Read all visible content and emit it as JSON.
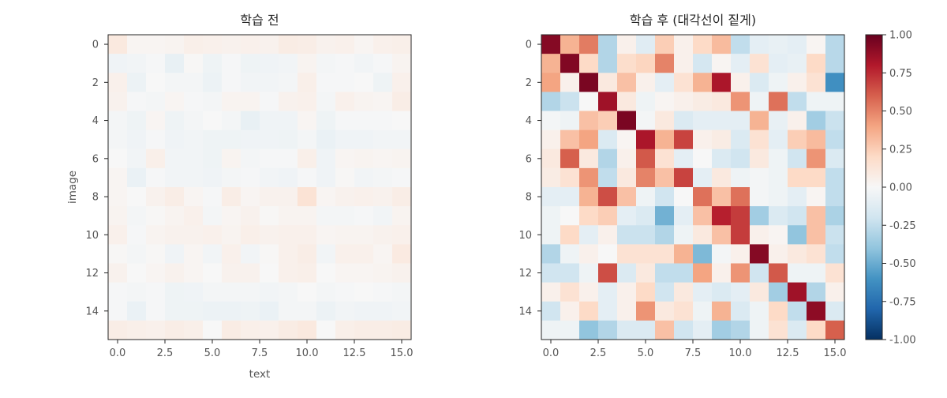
{
  "chart_data": [
    {
      "type": "heatmap",
      "title": "학습 전",
      "xlabel": "text",
      "ylabel": "image",
      "xlim": [
        -0.5,
        15.5
      ],
      "ylim": [
        15.5,
        -0.5
      ],
      "x_ticks": [
        "0.0",
        "2.5",
        "5.0",
        "7.5",
        "10.0",
        "12.5",
        "15.0"
      ],
      "y_ticks": [
        "0",
        "2",
        "4",
        "6",
        "8",
        "10",
        "12",
        "14"
      ],
      "values": [
        [
          0.1,
          0.02,
          0.02,
          0.03,
          0.06,
          0.05,
          0.04,
          0.05,
          0.04,
          0.08,
          0.07,
          0.04,
          0.05,
          0.02,
          0.05,
          0.06
        ],
        [
          -0.04,
          -0.03,
          -0.01,
          -0.08,
          0.01,
          -0.05,
          -0.01,
          -0.05,
          -0.04,
          -0.03,
          0.03,
          -0.02,
          -0.01,
          -0.03,
          -0.01,
          0.03
        ],
        [
          0.05,
          -0.06,
          0.0,
          -0.02,
          -0.02,
          -0.06,
          -0.01,
          -0.03,
          -0.03,
          -0.02,
          0.06,
          -0.01,
          -0.01,
          0.0,
          -0.05,
          0.05
        ],
        [
          0.04,
          -0.01,
          -0.02,
          0.02,
          -0.01,
          -0.02,
          0.03,
          0.03,
          -0.01,
          0.04,
          0.05,
          -0.02,
          0.05,
          0.03,
          0.02,
          0.07
        ],
        [
          -0.02,
          -0.05,
          0.02,
          -0.05,
          -0.02,
          0.0,
          -0.02,
          -0.08,
          -0.04,
          -0.04,
          0.02,
          -0.05,
          -0.01,
          -0.01,
          -0.01,
          0.0
        ],
        [
          -0.02,
          -0.04,
          -0.01,
          -0.04,
          -0.03,
          -0.05,
          -0.05,
          -0.04,
          -0.04,
          -0.05,
          -0.02,
          -0.07,
          -0.04,
          -0.04,
          -0.03,
          -0.03
        ],
        [
          0.0,
          -0.03,
          0.06,
          -0.03,
          -0.03,
          -0.05,
          0.03,
          -0.02,
          -0.01,
          -0.01,
          0.06,
          -0.04,
          0.02,
          0.03,
          0.02,
          0.03
        ],
        [
          0.02,
          -0.07,
          -0.01,
          -0.03,
          -0.03,
          -0.04,
          -0.02,
          -0.01,
          -0.03,
          -0.04,
          -0.01,
          -0.04,
          0.01,
          -0.03,
          -0.02,
          -0.01
        ],
        [
          0.02,
          0.0,
          0.04,
          0.07,
          0.02,
          -0.01,
          0.07,
          0.02,
          0.04,
          0.04,
          0.14,
          0.02,
          0.04,
          0.05,
          0.04,
          0.07
        ],
        [
          0.03,
          -0.02,
          0.01,
          0.03,
          0.05,
          -0.02,
          0.02,
          0.04,
          0.01,
          0.03,
          0.03,
          -0.02,
          -0.02,
          -0.01,
          -0.03,
          0.03
        ],
        [
          0.05,
          -0.01,
          0.03,
          0.04,
          0.04,
          0.05,
          0.03,
          0.06,
          0.04,
          0.05,
          0.05,
          0.02,
          0.03,
          0.03,
          0.04,
          0.05
        ],
        [
          0.01,
          -0.02,
          0.01,
          -0.04,
          0.02,
          -0.03,
          0.05,
          -0.03,
          0.01,
          0.05,
          0.07,
          -0.03,
          0.05,
          0.05,
          0.02,
          0.09
        ],
        [
          0.04,
          0.0,
          0.02,
          0.04,
          0.02,
          0.0,
          0.04,
          0.04,
          0.0,
          0.05,
          0.06,
          0.0,
          0.02,
          0.02,
          0.03,
          0.04
        ],
        [
          -0.01,
          -0.02,
          -0.01,
          -0.05,
          -0.04,
          -0.02,
          -0.02,
          -0.02,
          -0.03,
          -0.02,
          0.0,
          -0.02,
          -0.01,
          0.0,
          -0.01,
          -0.02
        ],
        [
          -0.01,
          -0.07,
          -0.01,
          -0.05,
          -0.05,
          -0.06,
          -0.06,
          -0.05,
          -0.07,
          -0.02,
          -0.02,
          -0.06,
          -0.03,
          -0.04,
          -0.04,
          -0.03
        ],
        [
          0.07,
          0.06,
          0.05,
          0.07,
          0.06,
          0.0,
          0.08,
          0.06,
          0.05,
          0.08,
          0.1,
          0.0,
          0.06,
          0.07,
          0.07,
          0.08
        ]
      ]
    },
    {
      "type": "heatmap",
      "title": "학습 후 (대각선이 짙게)",
      "xlim": [
        -0.5,
        15.5
      ],
      "ylim": [
        15.5,
        -0.5
      ],
      "x_ticks": [
        "0.0",
        "2.5",
        "5.0",
        "7.5",
        "10.0",
        "12.5",
        "15.0"
      ],
      "y_ticks": [
        "0",
        "2",
        "4",
        "6",
        "8",
        "10",
        "12",
        "14"
      ],
      "values": [
        [
          0.92,
          0.35,
          0.52,
          -0.3,
          0.05,
          -0.12,
          0.25,
          0.05,
          0.2,
          0.32,
          -0.25,
          -0.1,
          -0.08,
          -0.1,
          0.02,
          -0.28
        ],
        [
          0.35,
          0.93,
          0.2,
          -0.3,
          0.18,
          0.22,
          0.5,
          0.05,
          -0.18,
          0.02,
          -0.1,
          0.15,
          -0.1,
          -0.08,
          0.2,
          -0.28
        ],
        [
          0.4,
          0.05,
          0.95,
          0.1,
          0.3,
          0.05,
          -0.1,
          0.15,
          0.35,
          0.82,
          0.05,
          -0.15,
          -0.05,
          0.05,
          0.15,
          -0.62
        ],
        [
          -0.3,
          -0.22,
          0.0,
          0.85,
          0.1,
          -0.05,
          0.02,
          0.05,
          0.08,
          0.1,
          0.45,
          -0.05,
          0.55,
          -0.25,
          -0.05,
          -0.05
        ],
        [
          -0.02,
          -0.05,
          0.3,
          0.25,
          0.95,
          -0.02,
          0.1,
          -0.15,
          -0.1,
          -0.1,
          -0.1,
          0.35,
          -0.08,
          0.05,
          -0.35,
          -0.22
        ],
        [
          0.05,
          0.3,
          0.4,
          -0.15,
          0.02,
          0.82,
          0.35,
          0.68,
          0.05,
          0.08,
          -0.15,
          0.15,
          -0.1,
          0.25,
          0.32,
          -0.25
        ],
        [
          0.1,
          0.6,
          0.1,
          -0.3,
          0.05,
          0.62,
          0.15,
          -0.1,
          0.0,
          -0.15,
          -0.2,
          0.1,
          -0.05,
          -0.2,
          0.45,
          -0.15
        ],
        [
          0.08,
          0.15,
          0.45,
          -0.25,
          0.1,
          0.5,
          0.3,
          0.68,
          -0.1,
          0.1,
          -0.05,
          -0.02,
          -0.05,
          0.2,
          0.2,
          -0.25
        ],
        [
          -0.1,
          -0.1,
          0.35,
          0.65,
          0.3,
          -0.05,
          -0.2,
          0.0,
          0.55,
          0.3,
          0.55,
          -0.02,
          -0.05,
          -0.1,
          0.02,
          -0.25
        ],
        [
          -0.05,
          0.0,
          0.2,
          0.25,
          -0.1,
          -0.15,
          -0.48,
          -0.1,
          0.3,
          0.78,
          0.7,
          -0.35,
          -0.15,
          -0.2,
          0.3,
          -0.32
        ],
        [
          -0.05,
          0.2,
          -0.1,
          0.05,
          -0.22,
          -0.22,
          -0.3,
          -0.05,
          0.1,
          0.3,
          0.7,
          0.05,
          0.02,
          -0.4,
          0.3,
          -0.22
        ],
        [
          -0.3,
          -0.05,
          0.05,
          0.0,
          0.15,
          0.15,
          0.15,
          0.35,
          -0.45,
          -0.02,
          0.05,
          0.92,
          0.05,
          0.1,
          0.15,
          -0.25
        ],
        [
          -0.2,
          -0.2,
          -0.05,
          0.65,
          -0.15,
          0.1,
          -0.25,
          -0.25,
          0.4,
          0.05,
          0.45,
          -0.2,
          0.62,
          -0.05,
          -0.05,
          0.15
        ],
        [
          0.05,
          0.15,
          0.05,
          -0.1,
          0.05,
          0.2,
          -0.2,
          0.1,
          -0.1,
          -0.15,
          -0.1,
          0.1,
          -0.35,
          0.85,
          -0.3,
          0.05
        ],
        [
          -0.2,
          0.05,
          0.2,
          -0.1,
          0.05,
          0.45,
          0.1,
          0.15,
          -0.05,
          0.35,
          -0.15,
          -0.05,
          0.2,
          -0.25,
          0.9,
          -0.15
        ],
        [
          -0.05,
          -0.05,
          -0.4,
          -0.3,
          -0.15,
          -0.15,
          0.3,
          -0.2,
          -0.1,
          -0.35,
          -0.3,
          -0.05,
          0.15,
          -0.15,
          0.2,
          0.6
        ]
      ]
    }
  ],
  "colorbar": {
    "colormap": "RdBu_r",
    "range": [
      -1.0,
      1.0
    ],
    "ticks": [
      "1.00",
      "0.75",
      "0.50",
      "0.25",
      "0.00",
      "-0.25",
      "-0.50",
      "-0.75",
      "-1.00"
    ],
    "stops": [
      "#053061",
      "#2166ac",
      "#4393c3",
      "#92c5de",
      "#d1e5f0",
      "#f7f7f7",
      "#fddbc7",
      "#f4a582",
      "#d6604d",
      "#b2182b",
      "#67001f"
    ]
  }
}
